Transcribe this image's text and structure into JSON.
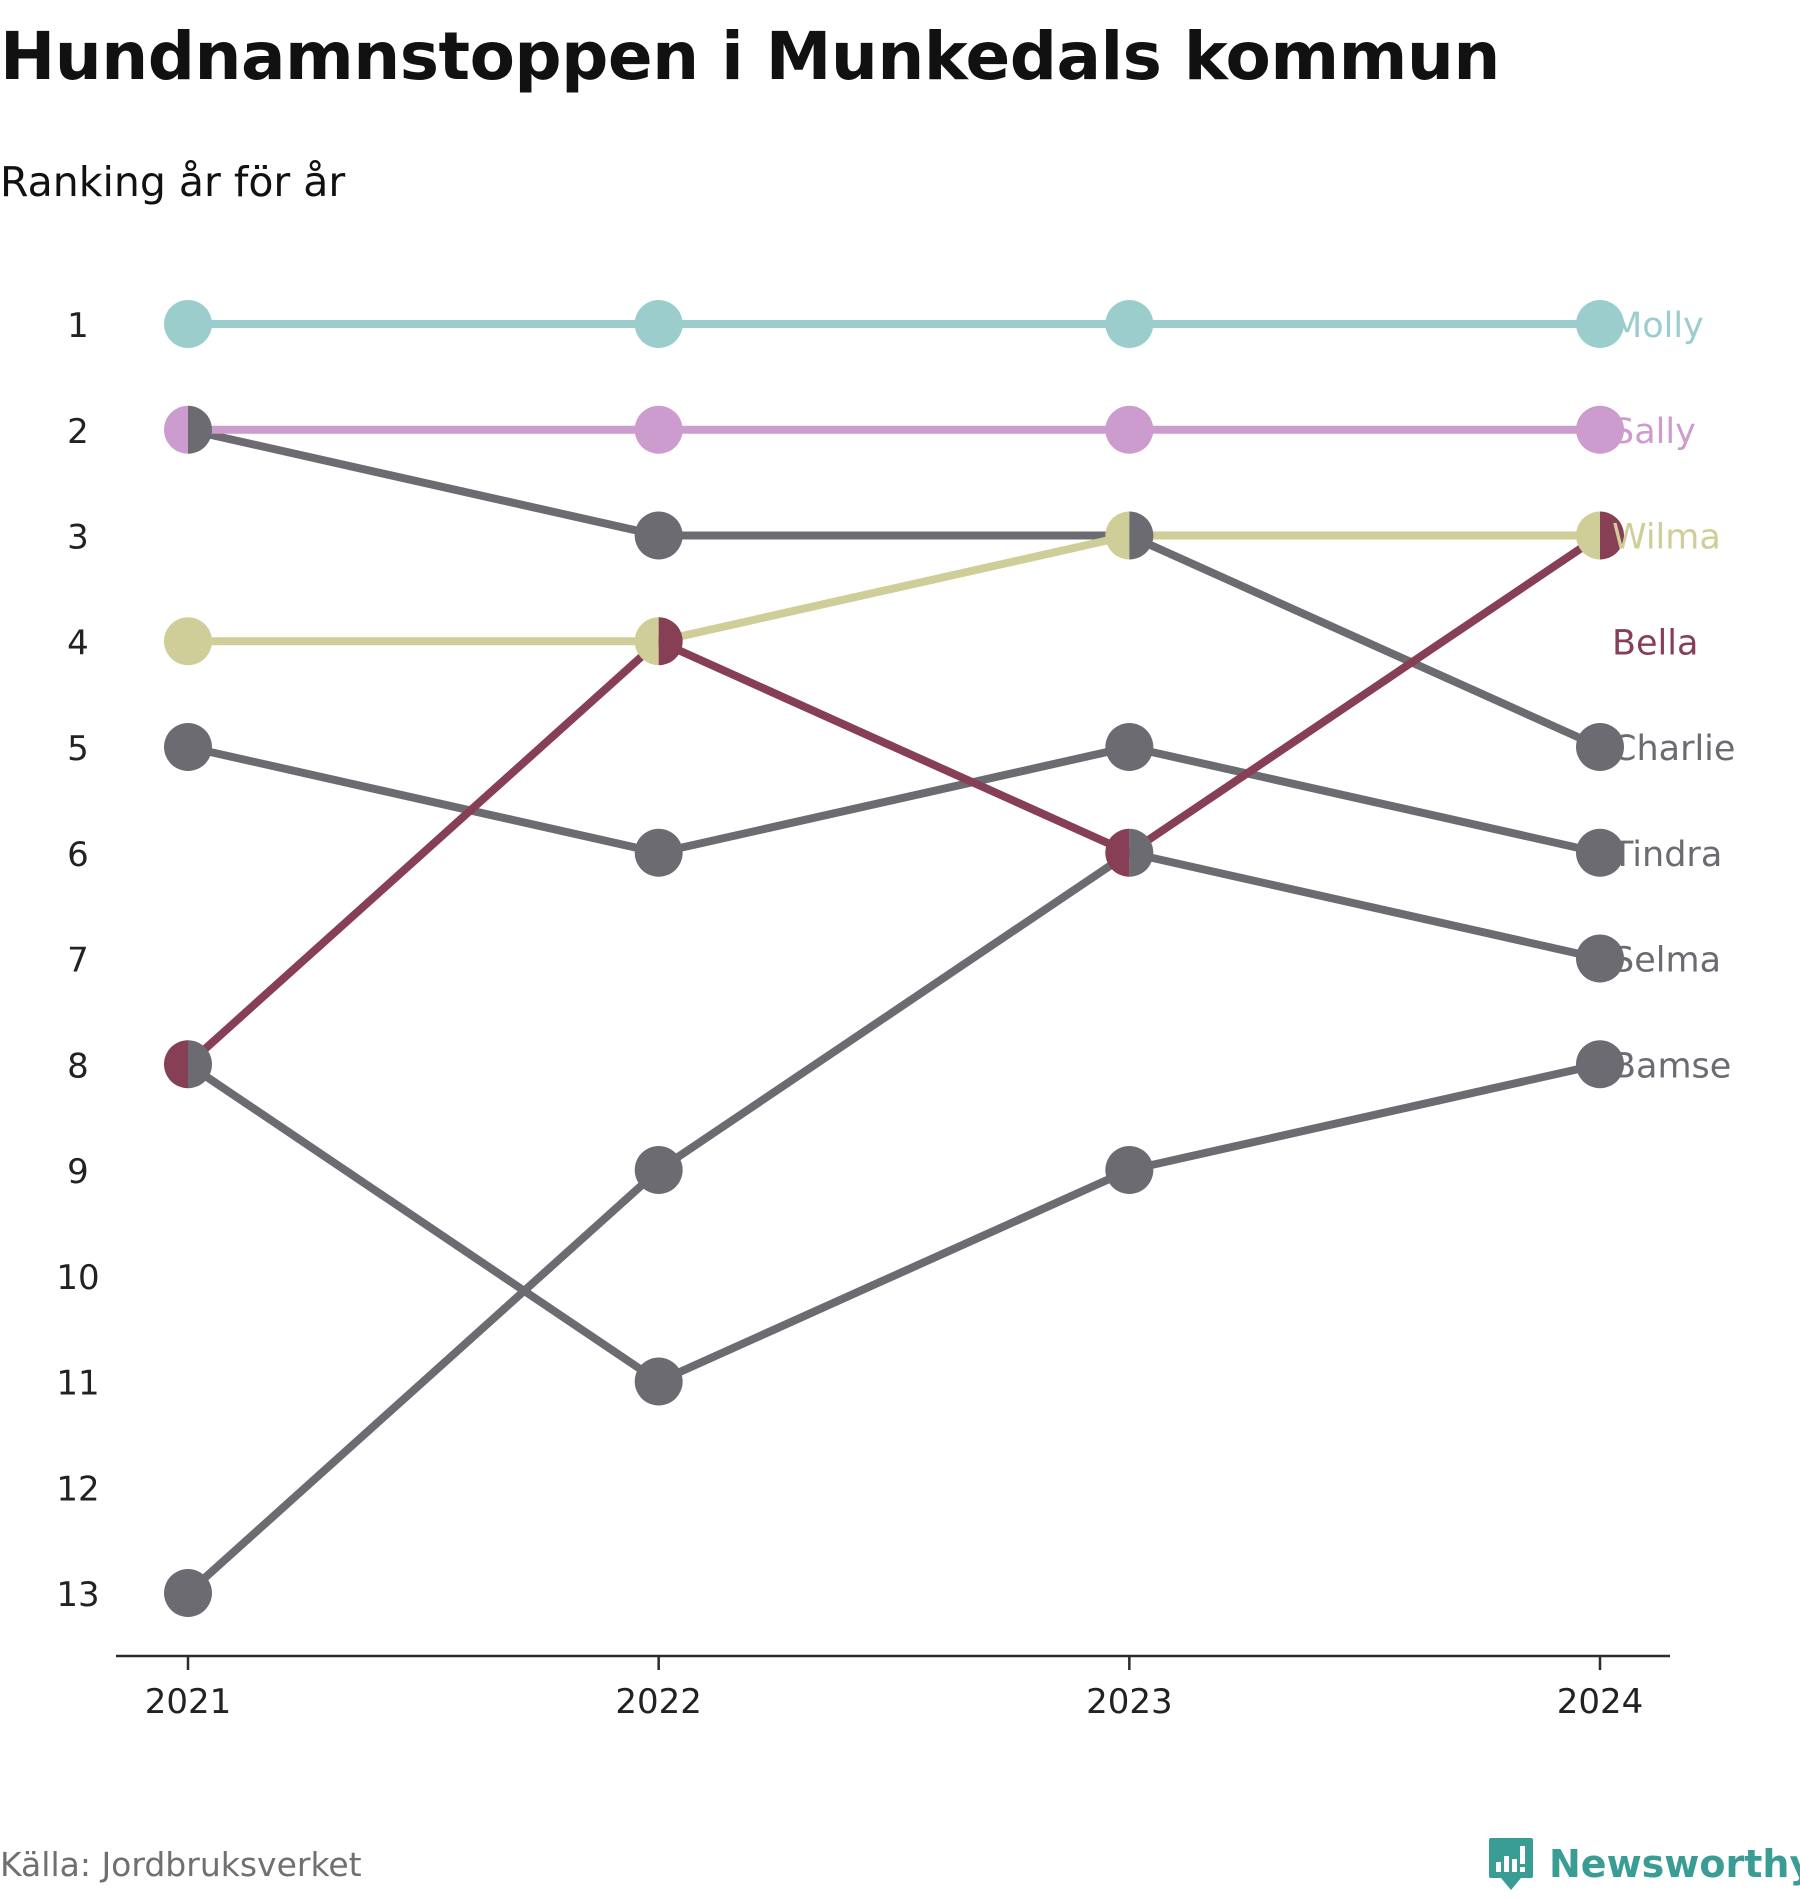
{
  "chart_data": {
    "type": "line",
    "subtype": "bump",
    "title": "Hundnamnstoppen i Munkedals kommun",
    "subtitle": "Ranking år för år",
    "x": [
      "2021",
      "2022",
      "2023",
      "2024"
    ],
    "y_ticks": [
      "1",
      "2",
      "3",
      "4",
      "5",
      "6",
      "7",
      "8",
      "9",
      "10",
      "11",
      "12",
      "13"
    ],
    "ylim": [
      1,
      13
    ],
    "y_inverted": true,
    "grid": false,
    "series": [
      {
        "name": "Molly",
        "values": [
          1,
          1,
          1,
          1
        ],
        "color": "#9acdcc"
      },
      {
        "name": "Sally",
        "values": [
          2,
          2,
          2,
          2
        ],
        "color": "#cc9cce"
      },
      {
        "name": "Wilma",
        "values": [
          4,
          4,
          3,
          3
        ],
        "color": "#cfce98"
      },
      {
        "name": "Bella",
        "values": [
          8,
          4,
          6,
          3
        ],
        "color": "#863f55"
      },
      {
        "name": "Charlie",
        "values": [
          2,
          3,
          3,
          5
        ],
        "color": "#6c6b72"
      },
      {
        "name": "Tindra",
        "values": [
          5,
          6,
          5,
          6
        ],
        "color": "#6c6b72"
      },
      {
        "name": "Selma",
        "values": [
          13,
          9,
          6,
          7
        ],
        "color": "#6c6b72"
      },
      {
        "name": "Bamse",
        "values": [
          8,
          11,
          9,
          8
        ],
        "color": "#6c6b72"
      }
    ],
    "label_colors": {
      "Charlie": "#6c6b72",
      "Tindra": "#6c6b72",
      "Selma": "#6c6b72",
      "Bamse": "#6c6b72"
    }
  },
  "footer": {
    "source": "Källa: Jordbruksverket",
    "brand": "Newsworthy",
    "brand_icon": "newsworthy-logo-icon",
    "brand_color": "#3a9d93"
  }
}
